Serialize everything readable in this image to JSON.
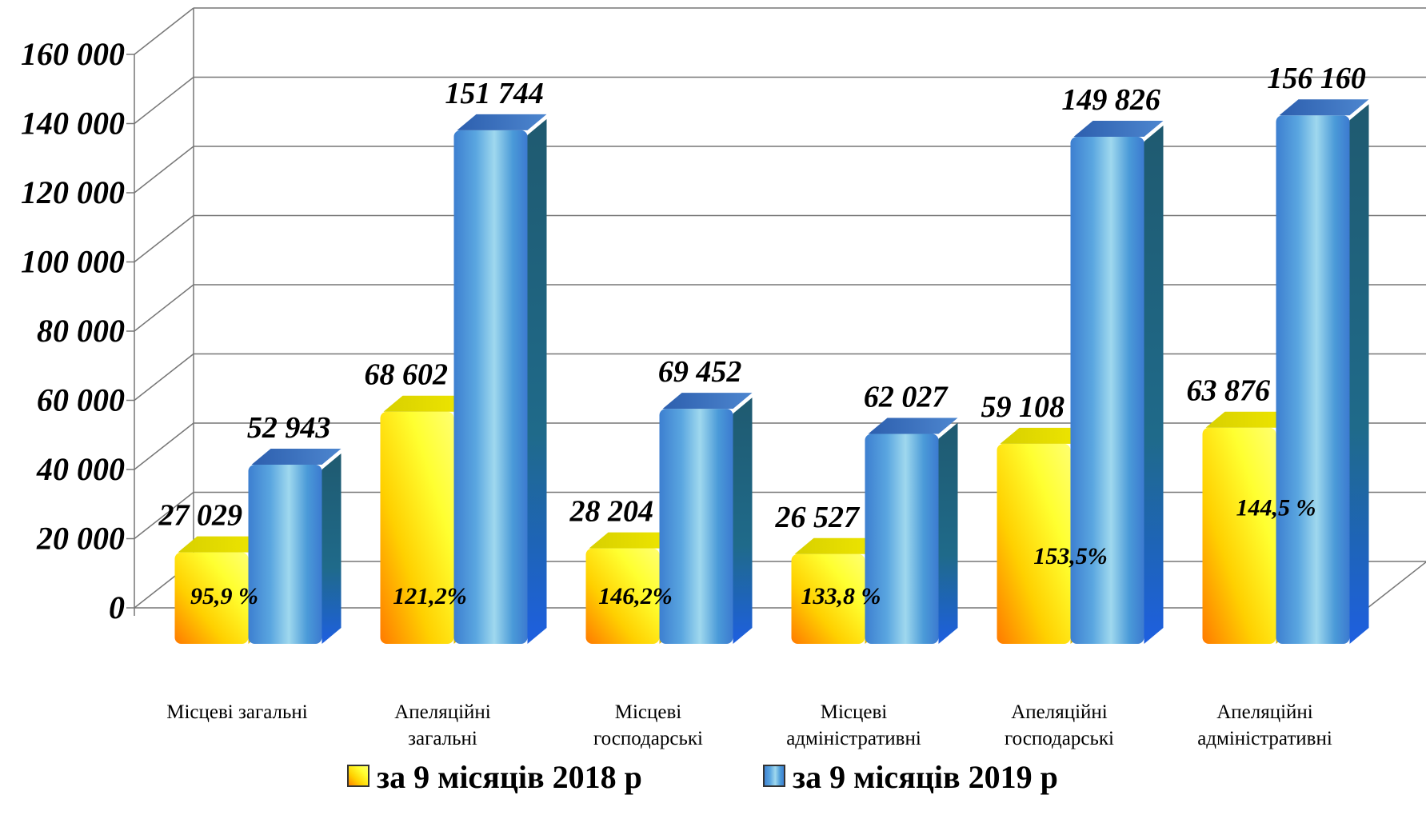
{
  "chart_data": {
    "type": "bar",
    "three_d": true,
    "title": "",
    "xlabel": "",
    "ylabel": "",
    "ylim": [
      0,
      160000
    ],
    "yticks": [
      0,
      20000,
      40000,
      60000,
      80000,
      100000,
      120000,
      140000,
      160000
    ],
    "ytick_labels": [
      "0",
      "20 000",
      "40 000",
      "60 000",
      "80 000",
      "100 000",
      "120 000",
      "140 000",
      "160 000"
    ],
    "grid": true,
    "legend_position": "bottom",
    "categories": [
      [
        "Місцеві загальні"
      ],
      [
        "Апеляційні",
        "загальні"
      ],
      [
        "Місцеві",
        "господарські"
      ],
      [
        "Місцеві",
        "адміністративні"
      ],
      [
        "Апеляційні",
        "господарські"
      ],
      [
        "Апеляційні",
        "адміністративні"
      ]
    ],
    "series": [
      {
        "name": "за 9 місяців 2018 р",
        "values": [
          27029,
          68602,
          28204,
          26527,
          59108,
          63876
        ],
        "labels": [
          "27 029",
          "68 602",
          "28 204",
          "26 527",
          "59 108",
          "63 876"
        ],
        "color": "#ffff00"
      },
      {
        "name": "за 9 місяців 2019 р",
        "values": [
          52943,
          151744,
          69452,
          62027,
          149826,
          156160
        ],
        "labels": [
          "52 943",
          "151 744",
          "69 452",
          "62 027",
          "149 826",
          "156 160"
        ],
        "color": "#4a90d9"
      }
    ],
    "annotations": [
      "95,9 %",
      "121,2%",
      "146,2%",
      "133,8 %",
      "153,5%",
      "144,5 %"
    ]
  }
}
